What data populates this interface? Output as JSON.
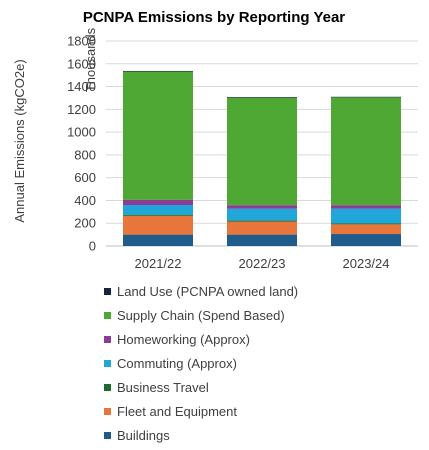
{
  "chart_data": {
    "type": "bar",
    "stacked": true,
    "title": "PCNPA Emissions by Reporting Year",
    "ylabel": "Annual Emissions (kgCO2e)",
    "yunit_label": "Thousands",
    "ylim": [
      0,
      1800
    ],
    "yticks": [
      0,
      200,
      400,
      600,
      800,
      1000,
      1200,
      1400,
      1600,
      1800
    ],
    "grid": true,
    "legend_position": "bottom",
    "categories": [
      "2021/22",
      "2022/23",
      "2023/24"
    ],
    "series": [
      {
        "name": "Buildings",
        "color": "#1F5C8B",
        "values": [
          100,
          100,
          105
        ]
      },
      {
        "name": "Fleet and Equipment",
        "color": "#E8763A",
        "values": [
          165,
          115,
          85
        ]
      },
      {
        "name": "Business Travel",
        "color": "#1E6B2E",
        "values": [
          10,
          8,
          8
        ]
      },
      {
        "name": "Commuting (Approx)",
        "color": "#20A6D8",
        "values": [
          85,
          105,
          130
        ]
      },
      {
        "name": "Homeworking (Approx)",
        "color": "#8E3B97",
        "values": [
          45,
          30,
          30
        ]
      },
      {
        "name": "Supply Chain (Spend Based)",
        "color": "#4EA833",
        "values": [
          1127,
          945,
          947
        ]
      },
      {
        "name": "Land Use (PCNPA owned land)",
        "color": "#14263B",
        "values": [
          5,
          5,
          5
        ]
      }
    ],
    "legend_order": [
      "Land Use (PCNPA owned land)",
      "Supply Chain (Spend Based)",
      "Homeworking (Approx)",
      "Commuting (Approx)",
      "Business Travel",
      "Fleet and Equipment",
      "Buildings"
    ]
  }
}
